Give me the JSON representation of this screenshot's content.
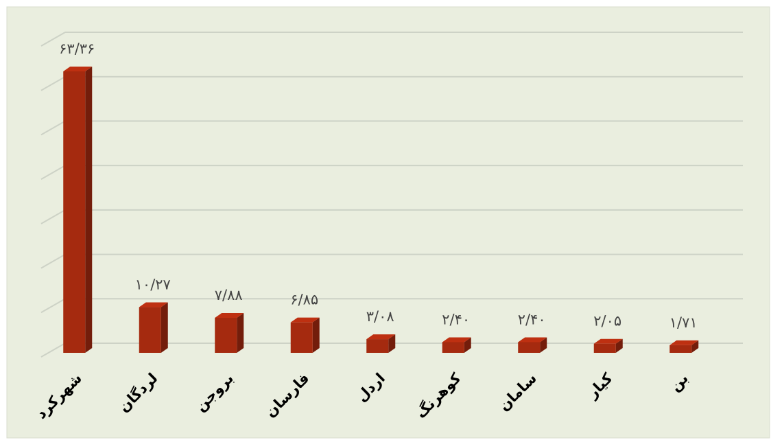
{
  "chart_data": {
    "type": "bar3d",
    "categories": [
      "شهرکرد",
      "لردگان",
      "بروجن",
      "فارسان",
      "اردل",
      "کوهرنگ",
      "سامان",
      "کیار",
      "بن"
    ],
    "values": [
      63.36,
      10.27,
      7.88,
      6.85,
      3.08,
      2.4,
      2.4,
      2.05,
      1.71
    ],
    "value_labels": [
      "۶۳/۳۶",
      "۱۰/۲۷",
      "۷/۸۸",
      "۶/۸۵",
      "۳/۰۸",
      "۲/۴۰",
      "۲/۴۰",
      "۲/۰۵",
      "۱/۷۱"
    ],
    "color": "#a52a0f",
    "ylim": [
      0,
      70
    ],
    "yticks": [
      0,
      10,
      20,
      30,
      40,
      50,
      60,
      70
    ],
    "grid": true
  }
}
